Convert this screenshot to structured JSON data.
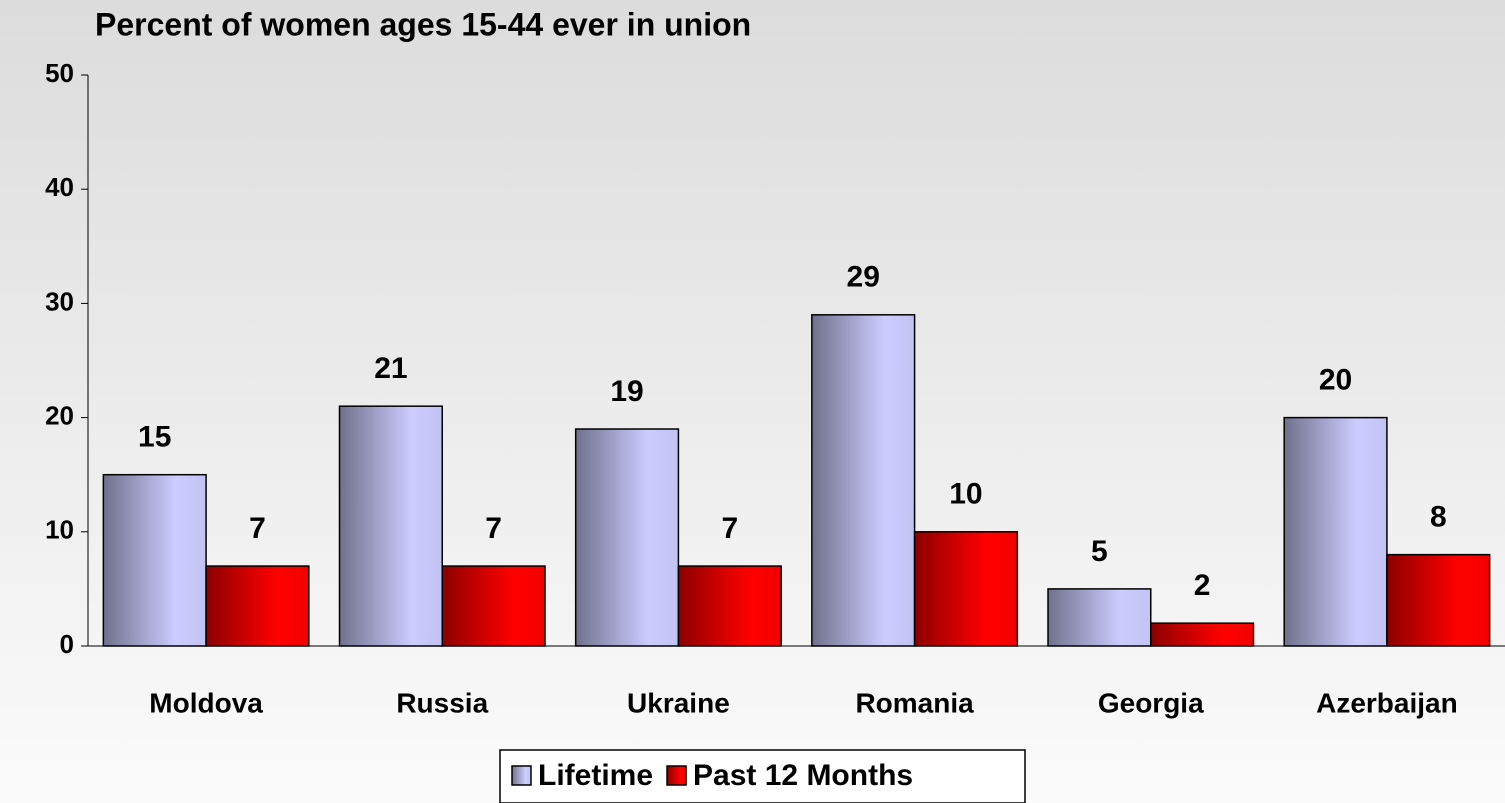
{
  "chart_data": {
    "type": "bar",
    "title": "Percent of women ages 15-44 ever in union",
    "categories": [
      "Moldova",
      "Russia",
      "Ukraine",
      "Romania",
      "Georgia",
      "Azerbaijan"
    ],
    "series": [
      {
        "name": "Lifetime",
        "color": "#ccccff",
        "values": [
          15,
          21,
          19,
          29,
          5,
          20
        ]
      },
      {
        "name": "Past 12 Months",
        "color": "#ff0000",
        "values": [
          7,
          7,
          7,
          10,
          2,
          8
        ]
      }
    ],
    "ylim": [
      0,
      50
    ],
    "yticks": [
      0,
      10,
      20,
      30,
      40,
      50
    ],
    "legend": "bottom"
  }
}
